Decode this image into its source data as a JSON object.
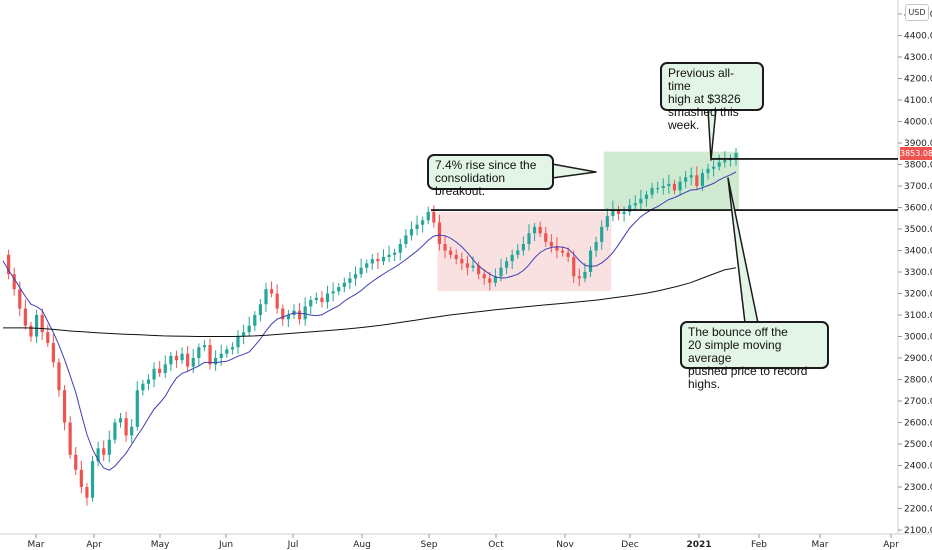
{
  "currency_label": "USD",
  "price_tag": "3853.08",
  "colors": {
    "up": "#26a69a",
    "down": "#ef5350",
    "ma20": "#3f3fb5",
    "ma200": "#111111",
    "box_green": "#c8e6c9",
    "box_red": "#f8d7d7"
  },
  "callouts": {
    "ath": "Previous all-time\nhigh at $3826\nsmashed this week.",
    "rise": "7.4% rise since the\nconsolidation breakout.",
    "bounce": "The bounce off the\n20 simple moving average\npushed price to record highs."
  },
  "chart_data": {
    "type": "candlestick",
    "title": "",
    "ylim": [
      2100,
      4500
    ],
    "y_ticks": [
      "2100.00",
      "2200.00",
      "2300.00",
      "2400.00",
      "2500.00",
      "2600.00",
      "2700.00",
      "2800.00",
      "2900.00",
      "3000.00",
      "3100.00",
      "3200.00",
      "3300.00",
      "3400.00",
      "3500.00",
      "3600.00",
      "3700.00",
      "3800.00",
      "3900.00",
      "4000.00",
      "4100.00",
      "4200.00",
      "4300.00",
      "4400.00",
      "4500.00"
    ],
    "x_ticks": [
      "Mar",
      "Apr",
      "May",
      "Jun",
      "Jul",
      "Aug",
      "Sep",
      "Oct",
      "Nov",
      "Dec",
      "2021",
      "Feb",
      "Mar",
      "Apr"
    ],
    "close_series": [
      3380,
      3290,
      3220,
      3130,
      3050,
      3000,
      3100,
      3020,
      2970,
      2880,
      2750,
      2600,
      2450,
      2380,
      2300,
      2250,
      2420,
      2480,
      2450,
      2520,
      2600,
      2620,
      2540,
      2580,
      2750,
      2780,
      2800,
      2850,
      2830,
      2870,
      2910,
      2890,
      2920,
      2860,
      2900,
      2950,
      2960,
      2870,
      2900,
      2920,
      2940,
      2950,
      3000,
      3020,
      3050,
      3100,
      3150,
      3220,
      3200,
      3130,
      3080,
      3100,
      3120,
      3080,
      3140,
      3170,
      3180,
      3160,
      3200,
      3210,
      3230,
      3250,
      3270,
      3290,
      3320,
      3340,
      3360,
      3350,
      3370,
      3380,
      3390,
      3430,
      3470,
      3500,
      3520,
      3540,
      3580,
      3530,
      3430,
      3400,
      3380,
      3360,
      3340,
      3320,
      3330,
      3290,
      3270,
      3250,
      3280,
      3320,
      3350,
      3380,
      3400,
      3430,
      3480,
      3510,
      3480,
      3440,
      3420,
      3400,
      3390,
      3370,
      3280,
      3270,
      3300,
      3400,
      3440,
      3510,
      3560,
      3590,
      3570,
      3580,
      3610,
      3620,
      3640,
      3660,
      3690,
      3690,
      3700,
      3710,
      3680,
      3720,
      3740,
      3750,
      3700,
      3760,
      3780,
      3790,
      3810,
      3820,
      3830,
      3853
    ],
    "ma200_series": [
      3040,
      3040,
      3040,
      3038,
      3035,
      3030,
      3025,
      3022,
      3018,
      3015,
      3012,
      3010,
      3008,
      3005,
      3003,
      3002,
      3001,
      3000,
      3000,
      3000,
      3000,
      3001,
      3003,
      3006,
      3010,
      3014,
      3018,
      3022,
      3026,
      3030,
      3035,
      3040,
      3046,
      3052,
      3060,
      3068,
      3076,
      3084,
      3092,
      3100,
      3106,
      3112,
      3118,
      3124,
      3130,
      3135,
      3140,
      3145,
      3150,
      3155,
      3160,
      3165,
      3170,
      3178,
      3185,
      3192,
      3200,
      3210,
      3222,
      3235,
      3250,
      3270,
      3290,
      3310,
      3320
    ],
    "levels": [
      {
        "name": "previous all-time high",
        "value": 3826
      },
      {
        "name": "consolidation top",
        "value": 3588
      }
    ]
  }
}
